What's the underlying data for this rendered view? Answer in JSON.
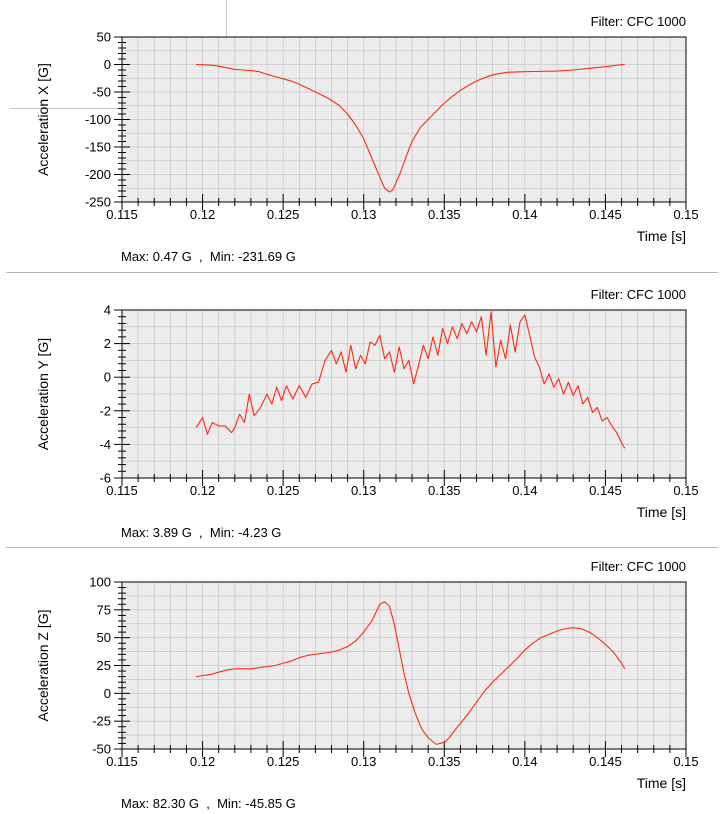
{
  "chart_data": [
    {
      "type": "line",
      "filter_label": "Filter: CFC 1000",
      "ylabel": "Acceleration X [G]",
      "xlabel": "Time [s]",
      "xlim": [
        0.115,
        0.15
      ],
      "ylim": [
        -250,
        50
      ],
      "x_ticks": [
        "0.115",
        "0.12",
        "0.125",
        "0.13",
        "0.135",
        "0.14",
        "0.145",
        "0.15"
      ],
      "y_ticks": [
        "50",
        "0",
        "-50",
        "-100",
        "-150",
        "-200",
        "-250"
      ],
      "y_tick_values": [
        50,
        0,
        -50,
        -100,
        -150,
        -200,
        -250
      ],
      "summary": "Max: 0.47 G  ,  Min: -231.69 G",
      "line_color": "#ff2a10",
      "series": [
        {
          "name": "Acceleration X",
          "x": [
            0.1196,
            0.1205,
            0.121,
            0.1215,
            0.122,
            0.1225,
            0.123,
            0.1235,
            0.124,
            0.1245,
            0.125,
            0.1255,
            0.126,
            0.1265,
            0.127,
            0.1275,
            0.128,
            0.1285,
            0.129,
            0.1295,
            0.13,
            0.1305,
            0.131,
            0.1313,
            0.1316,
            0.1318,
            0.132,
            0.1323,
            0.1326,
            0.133,
            0.1335,
            0.134,
            0.1345,
            0.135,
            0.1355,
            0.136,
            0.1365,
            0.137,
            0.1375,
            0.138,
            0.1385,
            0.139,
            0.14,
            0.141,
            0.142,
            0.143,
            0.144,
            0.145,
            0.1462
          ],
          "values": [
            0,
            -1,
            -3,
            -6,
            -9,
            -10,
            -11,
            -13,
            -18,
            -22,
            -26,
            -30,
            -36,
            -43,
            -50,
            -57,
            -65,
            -75,
            -90,
            -110,
            -135,
            -170,
            -205,
            -225,
            -231.69,
            -228,
            -215,
            -195,
            -170,
            -140,
            -115,
            -100,
            -85,
            -70,
            -58,
            -47,
            -38,
            -30,
            -24,
            -19,
            -16,
            -14,
            -13,
            -12.5,
            -12,
            -10,
            -7,
            -4,
            0.47
          ]
        }
      ]
    },
    {
      "type": "line",
      "filter_label": "Filter: CFC 1000",
      "ylabel": "Acceleration Y [G]",
      "xlabel": "Time [s]",
      "xlim": [
        0.115,
        0.15
      ],
      "ylim": [
        -6,
        4
      ],
      "x_ticks": [
        "0.115",
        "0.12",
        "0.125",
        "0.13",
        "0.135",
        "0.14",
        "0.145",
        "0.15"
      ],
      "y_ticks": [
        "4",
        "2",
        "0",
        "-2",
        "-4",
        "-6"
      ],
      "y_tick_values": [
        4,
        2,
        0,
        -2,
        -4,
        -6
      ],
      "summary": "Max: 3.89 G  ,  Min: -4.23 G",
      "line_color": "#ff2a10",
      "series": [
        {
          "name": "Acceleration Y",
          "x": [
            0.1196,
            0.12,
            0.1203,
            0.1206,
            0.121,
            0.1214,
            0.1218,
            0.122,
            0.1223,
            0.1226,
            0.1229,
            0.1232,
            0.1236,
            0.124,
            0.1243,
            0.1246,
            0.1249,
            0.1252,
            0.1256,
            0.126,
            0.1264,
            0.1268,
            0.1272,
            0.1276,
            0.128,
            0.1283,
            0.1286,
            0.1289,
            0.1292,
            0.1295,
            0.1298,
            0.1301,
            0.1304,
            0.1307,
            0.131,
            0.1313,
            0.1316,
            0.1319,
            0.1322,
            0.1325,
            0.1328,
            0.1331,
            0.1334,
            0.1337,
            0.134,
            0.1343,
            0.1346,
            0.1349,
            0.1352,
            0.1355,
            0.1358,
            0.1361,
            0.1364,
            0.1367,
            0.137,
            0.1373,
            0.1376,
            0.1379,
            0.1382,
            0.1385,
            0.1388,
            0.1391,
            0.1394,
            0.1397,
            0.14,
            0.1403,
            0.1406,
            0.1409,
            0.1412,
            0.1415,
            0.1418,
            0.1421,
            0.1424,
            0.1427,
            0.143,
            0.1433,
            0.1436,
            0.1439,
            0.1442,
            0.1445,
            0.1448,
            0.1451,
            0.1454,
            0.1457,
            0.146,
            0.1462
          ],
          "values": [
            -3.0,
            -2.4,
            -3.4,
            -2.7,
            -2.9,
            -2.9,
            -3.3,
            -3.0,
            -2.2,
            -2.7,
            -1.0,
            -2.3,
            -1.8,
            -1.0,
            -1.6,
            -0.6,
            -1.4,
            -0.5,
            -1.3,
            -0.5,
            -1.2,
            -0.4,
            -0.3,
            1.0,
            1.6,
            0.8,
            1.5,
            0.3,
            1.9,
            0.5,
            1.3,
            0.8,
            2.1,
            1.9,
            2.5,
            1.1,
            1.5,
            0.3,
            1.8,
            0.5,
            1.0,
            -0.4,
            0.7,
            1.9,
            1.1,
            2.4,
            1.3,
            2.9,
            2.0,
            3.0,
            2.3,
            3.2,
            2.6,
            3.3,
            2.7,
            3.6,
            1.3,
            3.89,
            0.6,
            2.2,
            1.1,
            3.1,
            1.5,
            3.3,
            3.7,
            2.5,
            1.2,
            0.6,
            -0.4,
            0.2,
            -0.6,
            -0.1,
            -1.0,
            -0.3,
            -1.1,
            -0.5,
            -1.6,
            -1.2,
            -2.1,
            -1.8,
            -2.6,
            -2.4,
            -2.9,
            -3.3,
            -3.9,
            -4.23
          ]
        }
      ]
    },
    {
      "type": "line",
      "filter_label": "Filter: CFC 1000",
      "ylabel": "Acceleration Z [G]",
      "xlabel": "Time [s]",
      "xlim": [
        0.115,
        0.15
      ],
      "ylim": [
        -50,
        100
      ],
      "x_ticks": [
        "0.115",
        "0.12",
        "0.125",
        "0.13",
        "0.135",
        "0.14",
        "0.145",
        "0.15"
      ],
      "y_ticks": [
        "100",
        "75",
        "50",
        "25",
        "0",
        "-25",
        "-50"
      ],
      "y_tick_values": [
        100,
        75,
        50,
        25,
        0,
        -25,
        -50
      ],
      "summary": "Max: 82.30 G  ,  Min: -45.85 G",
      "line_color": "#ff2a10",
      "series": [
        {
          "name": "Acceleration Z",
          "x": [
            0.1196,
            0.1205,
            0.121,
            0.1215,
            0.122,
            0.1225,
            0.123,
            0.1235,
            0.124,
            0.1245,
            0.125,
            0.1255,
            0.126,
            0.1265,
            0.127,
            0.1275,
            0.128,
            0.1285,
            0.129,
            0.1295,
            0.13,
            0.1305,
            0.131,
            0.1313,
            0.1316,
            0.1319,
            0.1322,
            0.1325,
            0.1328,
            0.1332,
            0.1336,
            0.134,
            0.1345,
            0.135,
            0.1353,
            0.1356,
            0.136,
            0.1365,
            0.137,
            0.1375,
            0.138,
            0.1385,
            0.139,
            0.1395,
            0.14,
            0.1405,
            0.141,
            0.1415,
            0.142,
            0.1425,
            0.143,
            0.1435,
            0.144,
            0.1445,
            0.145,
            0.1455,
            0.146,
            0.1462
          ],
          "values": [
            15,
            17,
            19,
            21,
            22,
            22,
            22,
            23,
            24,
            25,
            27,
            29,
            32,
            34,
            35,
            36,
            37,
            39,
            42,
            47,
            55,
            65,
            80,
            82.3,
            78,
            62,
            40,
            18,
            0,
            -18,
            -32,
            -40,
            -45.85,
            -44,
            -40,
            -34,
            -27,
            -18,
            -8,
            2,
            10,
            17,
            24,
            31,
            39,
            45,
            50,
            53,
            56,
            58,
            59,
            58,
            55,
            50,
            44,
            37,
            27,
            22
          ]
        }
      ]
    }
  ]
}
